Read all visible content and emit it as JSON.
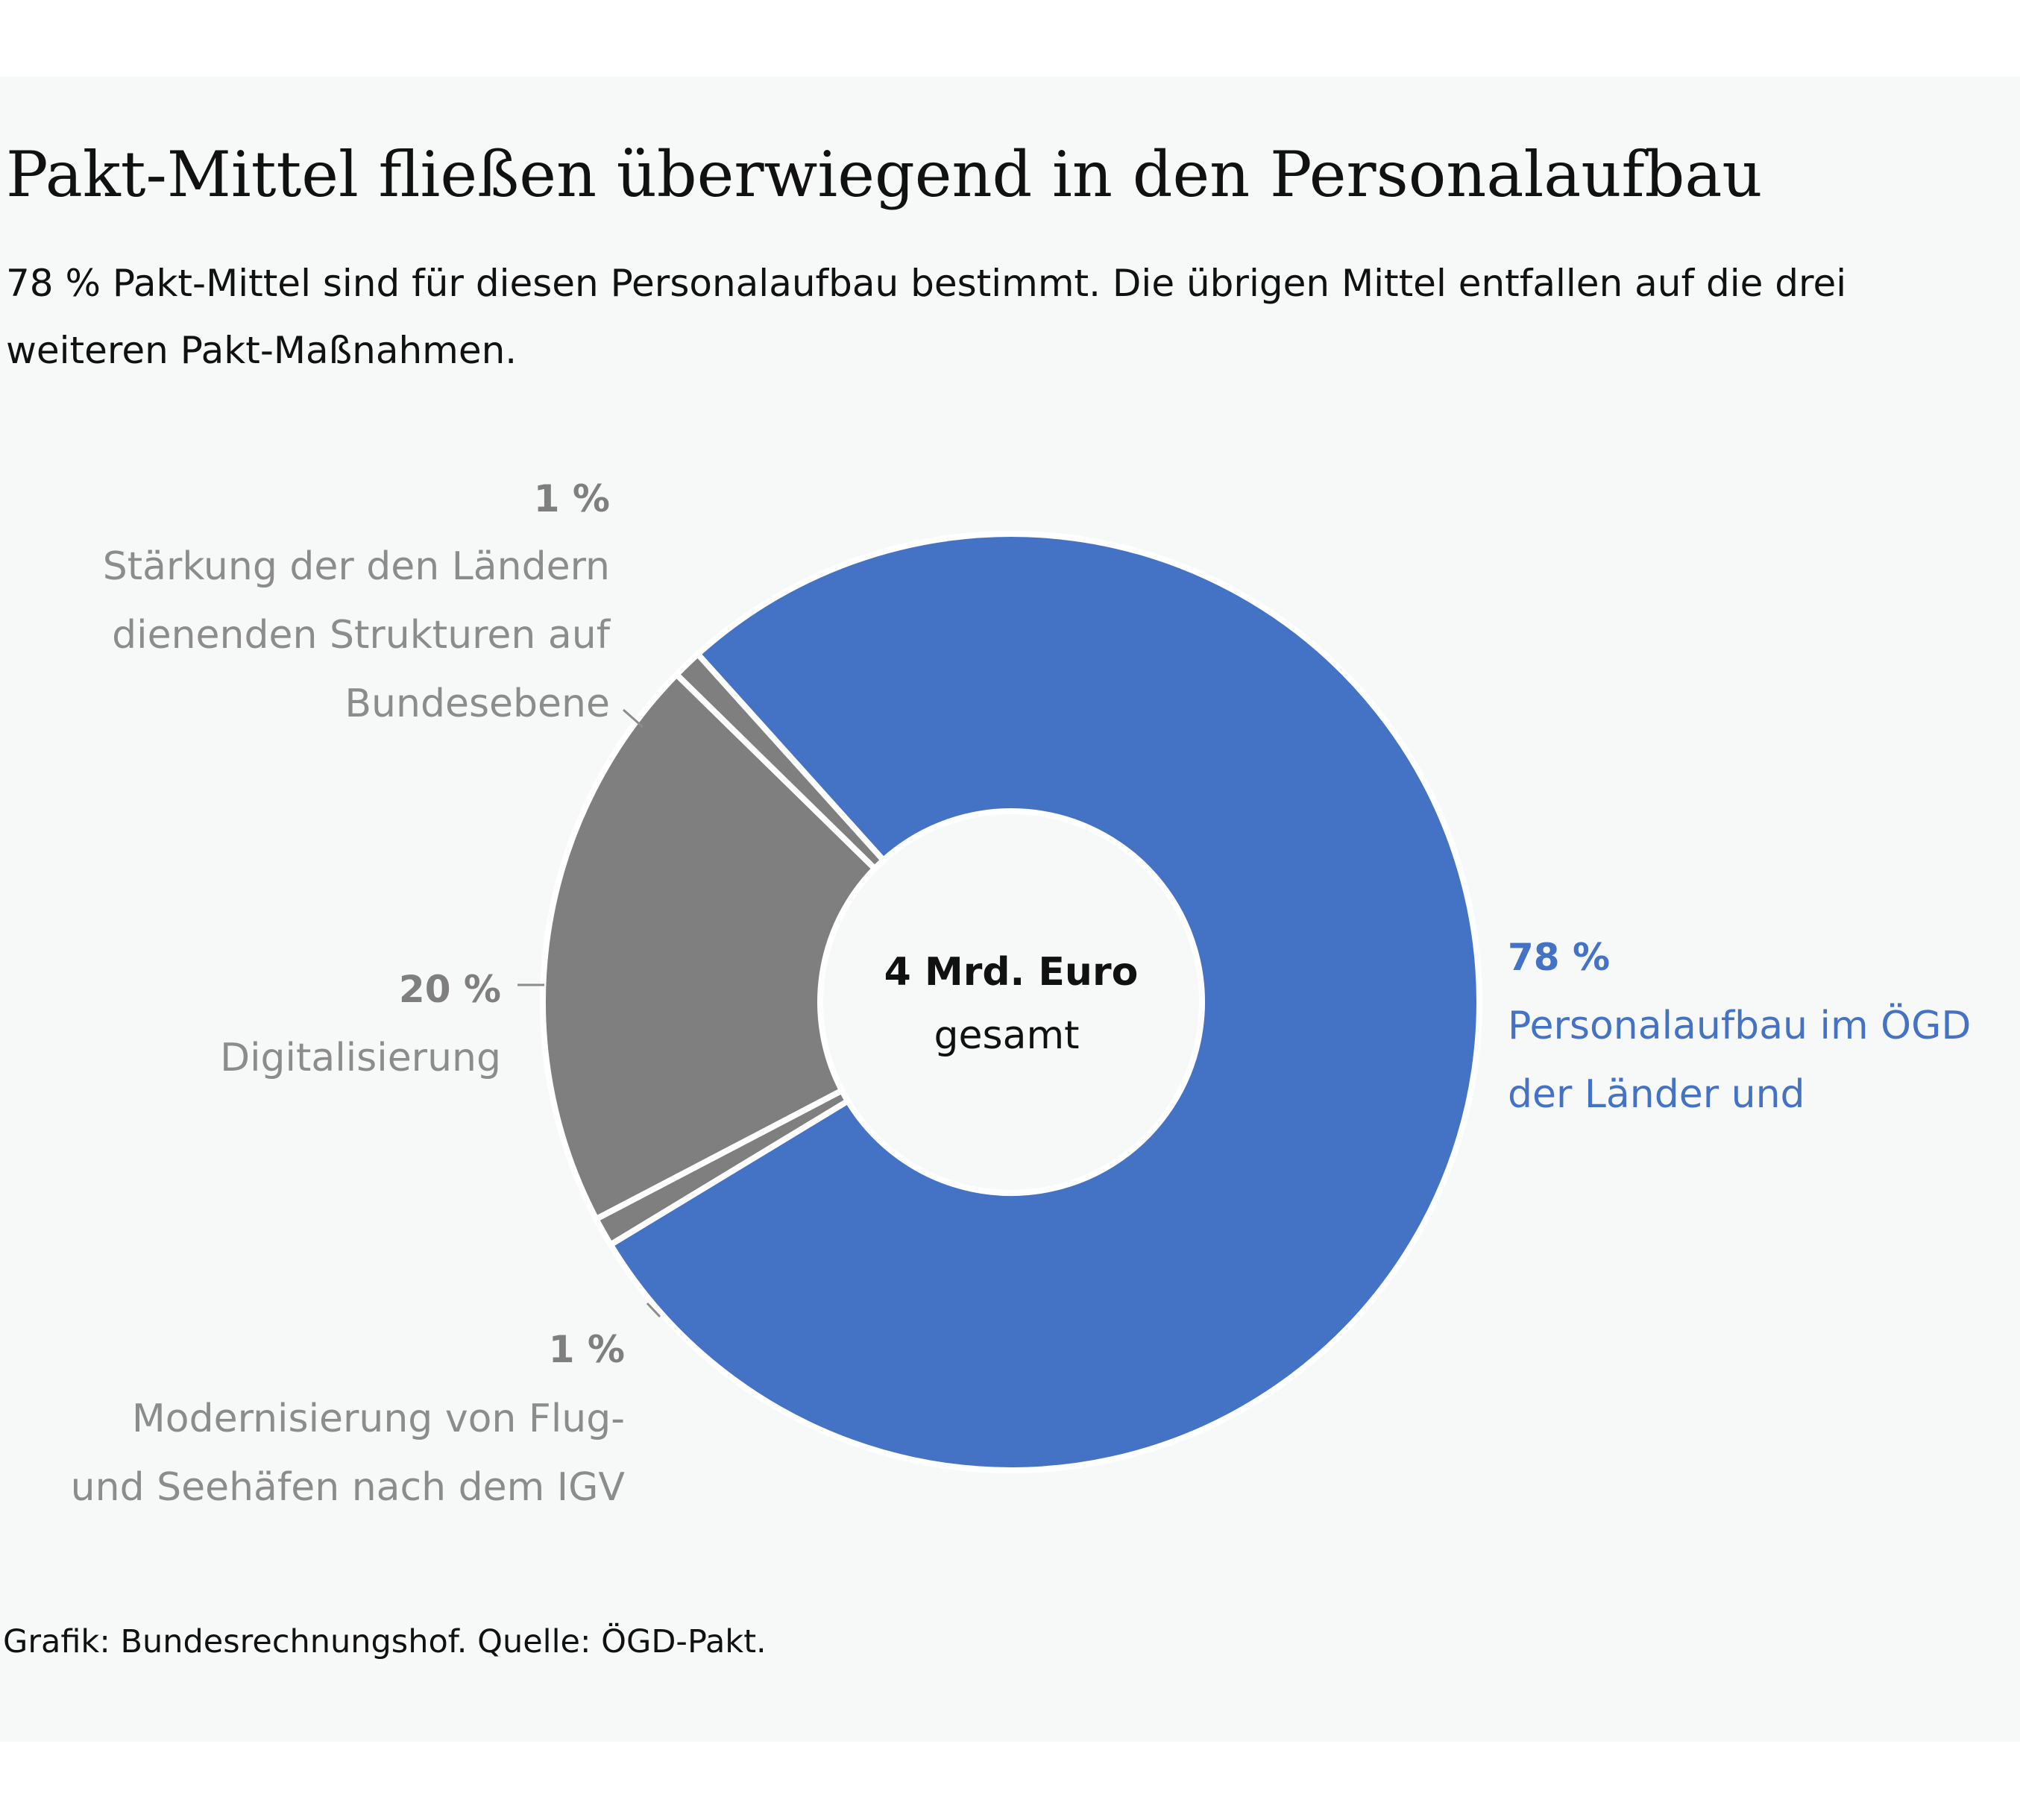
{
  "title": "Pakt-Mittel fließen überwiegend in den Personalaufbau",
  "subtitle": "78 % Pakt-Mittel sind für diesen Personalaufbau bestimmt. Die übrigen Mittel entfallen auf die drei weiteren Pakt-Maßnahmen.",
  "footer": "Grafik: Bundesrechnungshof. Quelle: ÖGD-Pakt.",
  "colors": {
    "blue": "#4472c4",
    "gray": "#7f7f7f",
    "label_gray": "#8c8c8c"
  },
  "chart_data": {
    "type": "pie",
    "variant": "donut",
    "center_label": {
      "value": "4 Mrd. Euro",
      "text": "gesamt"
    },
    "slices": [
      {
        "value": 78,
        "percent_label": "78 %",
        "label_lines": [
          "Personalaufbau im ÖGD",
          "der Länder und"
        ],
        "color": "#4472c4"
      },
      {
        "value": 1,
        "percent_label": "1 %",
        "label_lines": [
          "Modernisierung von Flug-",
          "und Seehäfen nach dem IGV"
        ],
        "color": "#7f7f7f"
      },
      {
        "value": 20,
        "percent_label": "20 %",
        "label_lines": [
          "Digitalisierung"
        ],
        "color": "#7f7f7f"
      },
      {
        "value": 1,
        "percent_label": "1 %",
        "label_lines": [
          "Stärkung der den Ländern",
          "dienenden Strukturen auf",
          "Bundesebene"
        ],
        "color": "#7f7f7f"
      }
    ]
  }
}
